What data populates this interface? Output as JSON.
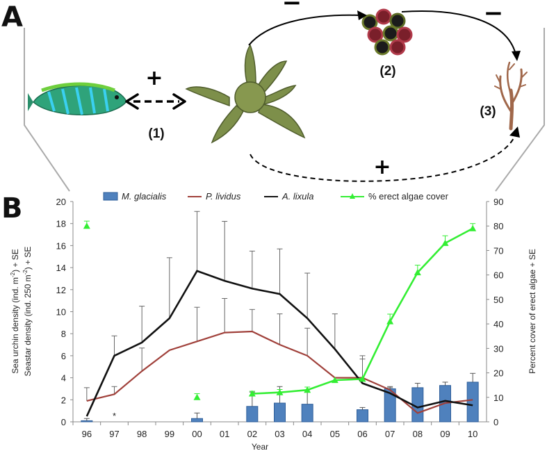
{
  "panels": {
    "a": "A",
    "b": "B"
  },
  "diagram": {
    "labels": [
      "(1)",
      "(2)",
      "(3)"
    ],
    "signs": {
      "fish_seastar": "+",
      "seastar_urchin": "−",
      "urchin_algae": "−",
      "seastar_algae": "+"
    }
  },
  "colors": {
    "m_glacialis": "#4f81bd",
    "p_lividus": "#a0403a",
    "a_lixula": "#111111",
    "algae": "#33ee33"
  },
  "chart_data": {
    "type": "bar+line",
    "categories": [
      "96",
      "97",
      "98",
      "99",
      "00",
      "01",
      "02",
      "03",
      "04",
      "05",
      "06",
      "07",
      "08",
      "09",
      "10"
    ],
    "xlabel": "Year",
    "ylabel_left": [
      "Sea urchin density (ind. m",
      "-2",
      ") + SE",
      "Seastar density (ind. 250 m",
      "-2",
      ") + SE"
    ],
    "ylabel_right": "Percent cover of erect algae + SE",
    "ylim_left": [
      0,
      20
    ],
    "yticks_left": [
      0,
      2,
      4,
      6,
      8,
      10,
      12,
      14,
      16,
      18,
      20
    ],
    "ylim_right": [
      0,
      90
    ],
    "yticks_right": [
      0,
      10,
      20,
      30,
      40,
      50,
      60,
      70,
      80,
      90
    ],
    "legend_position": "top",
    "annotation": "*",
    "annotation_category": "97",
    "series": [
      {
        "name": "M. glacialis",
        "kind": "bar",
        "axis": "left",
        "values": [
          0.1,
          null,
          null,
          null,
          0.3,
          null,
          1.4,
          1.7,
          1.6,
          null,
          1.1,
          3.0,
          3.1,
          3.3,
          3.6
        ],
        "errors": [
          0.2,
          null,
          null,
          null,
          0.5,
          null,
          1.3,
          1.5,
          1.3,
          null,
          0.2,
          0.2,
          0.4,
          0.3,
          0.8
        ]
      },
      {
        "name": "P. lividus",
        "kind": "line",
        "axis": "left",
        "values": [
          1.9,
          2.5,
          4.6,
          6.5,
          7.3,
          8.1,
          8.2,
          7.0,
          6.0,
          4.0,
          4.0,
          2.9,
          0.8,
          1.7,
          2.0
        ],
        "errors": [
          1.2,
          0.7,
          2.1,
          null,
          3.1,
          3.1,
          2.0,
          2.8,
          2.5,
          null,
          1.7,
          0.2,
          null,
          null,
          null
        ]
      },
      {
        "name": "A. lixula",
        "kind": "line",
        "axis": "left",
        "values": [
          0.5,
          6.0,
          7.2,
          9.4,
          13.7,
          12.8,
          12.1,
          11.6,
          9.4,
          6.6,
          3.5,
          2.6,
          1.3,
          1.9,
          1.5
        ],
        "errors": [
          null,
          1.8,
          3.3,
          5.5,
          5.4,
          5.4,
          3.4,
          4.1,
          4.1,
          3.2,
          2.5,
          null,
          null,
          null,
          null
        ]
      },
      {
        "name": "% erect algae cover",
        "kind": "line-marker",
        "axis": "right",
        "values": [
          80,
          null,
          null,
          null,
          10,
          null,
          11.5,
          12,
          13,
          17,
          17.5,
          41,
          61,
          73,
          79
        ],
        "errors": [
          2,
          null,
          null,
          null,
          1.5,
          null,
          1,
          1.2,
          1.2,
          null,
          null,
          3,
          3,
          3,
          2
        ],
        "connected_from": "02"
      }
    ]
  }
}
